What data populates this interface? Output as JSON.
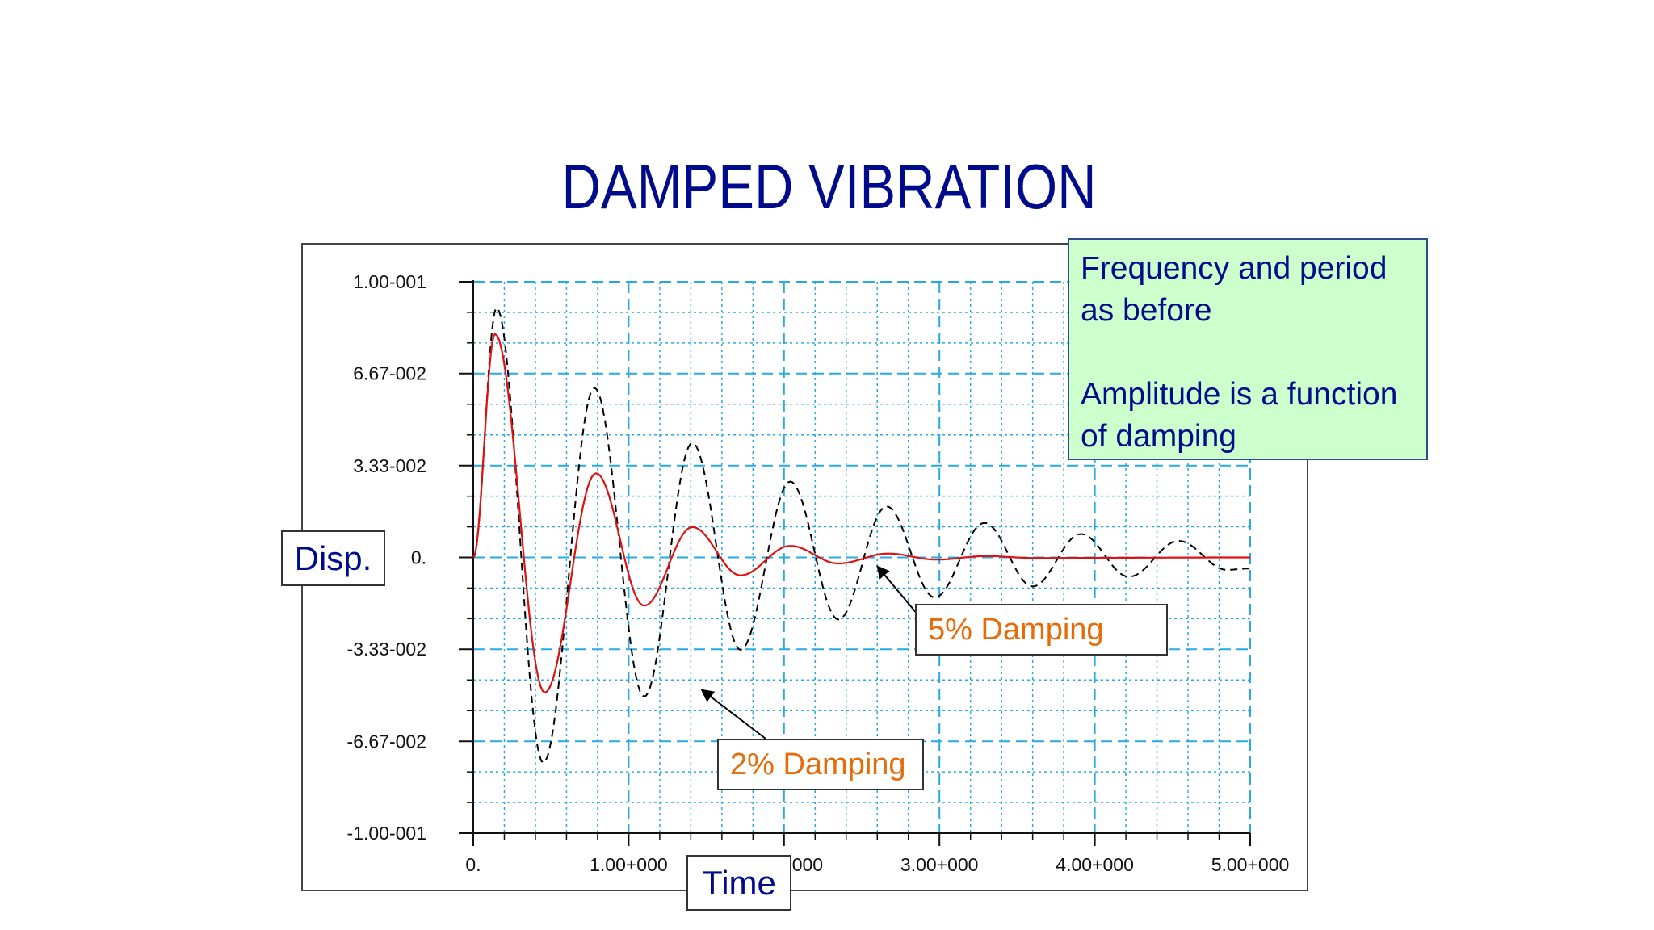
{
  "slide": {
    "title": "DAMPED VIBRATION"
  },
  "chart_data": {
    "type": "line",
    "title": "",
    "xlabel": "Time",
    "ylabel": "Disp.",
    "xlim": [
      0,
      5
    ],
    "ylim": [
      -0.1,
      0.1
    ],
    "x_ticks": [
      0,
      1,
      2,
      3,
      4,
      5
    ],
    "x_tick_labels": [
      "0.",
      "1.00+000",
      "2.00+000",
      "3.00+000",
      "4.00+000",
      "5.00+000"
    ],
    "y_ticks": [
      0.1,
      0.0667,
      0.0333,
      0,
      -0.0333,
      -0.0667,
      -0.1
    ],
    "y_tick_labels": [
      "1.00-001",
      "6.67-002",
      "3.33-002",
      "0.",
      "-3.33-002",
      "-6.67-002",
      "-1.00-001"
    ],
    "grid": true,
    "grid_color": "#29a9e1",
    "series": [
      {
        "name": "2% Damping",
        "color": "#000000",
        "dash": "dashed",
        "x": [
          0,
          0.15,
          0.45,
          0.78,
          1.1,
          1.41,
          1.72,
          2.04,
          2.35,
          2.66,
          2.97,
          3.29,
          3.6,
          3.91,
          4.22,
          4.54,
          4.85,
          5.0
        ],
        "y": [
          0,
          0.0905,
          -0.0745,
          0.0615,
          -0.0505,
          0.0415,
          -0.0335,
          0.0275,
          -0.0225,
          0.0185,
          -0.0145,
          0.0125,
          -0.0105,
          0.0085,
          -0.007,
          0.006,
          -0.0045,
          -0.004
        ]
      },
      {
        "name": "5% Damping",
        "color": "#e01010",
        "dash": "solid",
        "x": [
          0,
          0.14,
          0.46,
          0.79,
          1.1,
          1.41,
          1.72,
          2.04,
          2.35,
          2.67,
          2.98,
          3.3,
          3.6,
          5.0
        ],
        "y": [
          0,
          0.081,
          -0.049,
          0.0305,
          -0.0175,
          0.011,
          -0.0065,
          0.0042,
          -0.0022,
          0.0014,
          -0.0008,
          0.0005,
          -0.0002,
          0
        ]
      }
    ],
    "annotations": [
      {
        "text": "5% Damping",
        "target_x": 2.6,
        "target_y": -0.002
      },
      {
        "text": "2% Damping",
        "target_x": 1.47,
        "target_y": -0.048
      }
    ]
  },
  "info_box": {
    "line1": "Frequency and period as before",
    "line2": "Amplitude is a function of damping",
    "background": "#ccffcc"
  }
}
